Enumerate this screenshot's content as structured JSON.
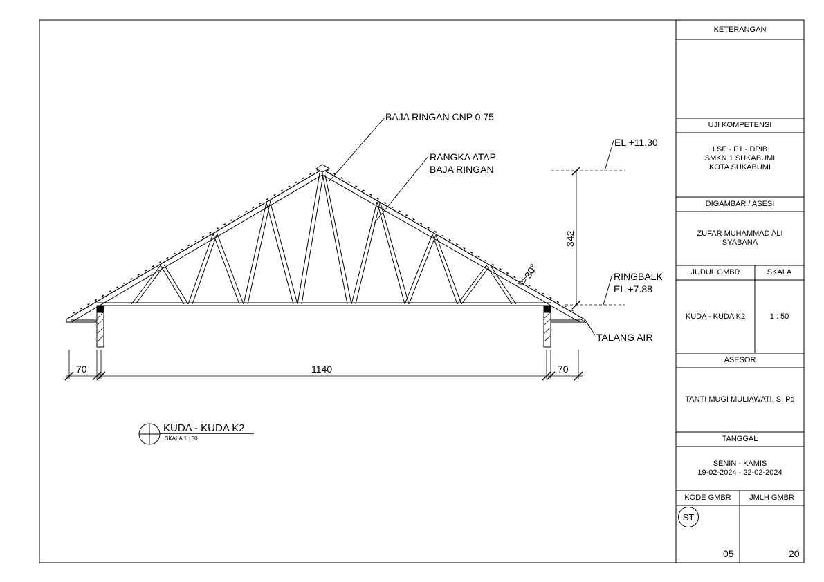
{
  "drawing": {
    "callouts": {
      "rafter": "BAJA RINGAN CNP 0.75",
      "truss_line1": "RANGKA ATAP",
      "truss_line2": "BAJA RINGAN",
      "el_top": "EL +11.30",
      "ringbalk": "RINGBALK",
      "el_ring": "EL +7.88",
      "gutter": "TALANG AIR"
    },
    "dimensions": {
      "height": "342",
      "angle": "30°",
      "overhang_left": "70",
      "span": "1140",
      "overhang_right": "70"
    },
    "title_mark": {
      "title": "KUDA - KUDA K2",
      "scale": "SKALA 1 : 50"
    }
  },
  "title_block": {
    "keterangan_header": "KETERANGAN",
    "uji_header": "UJI KOMPETENSI",
    "uji_value": "LSP - P1 - DPIB\nSMKN 1 SUKABUMI\nKOTA SUKABUMI",
    "digambar_header": "DIGAMBAR / ASESI",
    "digambar_value": "ZUFAR MUHAMMAD ALI\nSYABANA",
    "judul_header": "JUDUL GMBR",
    "skala_header": "SKALA",
    "judul_value": "KUDA - KUDA K2",
    "skala_value": "1 : 50",
    "asesor_header": "ASESOR",
    "asesor_value": "TANTI MUGI MULIAWATI, S. Pd",
    "tanggal_header": "TANGGAL",
    "tanggal_value": "SENIN - KAMIS\n19-02-2024 - 22-02-2024",
    "kode_header": "KODE GMBR",
    "jumlah_header": "JMLH GMBR",
    "kode_badge": "ST",
    "kode_value": "05",
    "jumlah_value": "20"
  }
}
